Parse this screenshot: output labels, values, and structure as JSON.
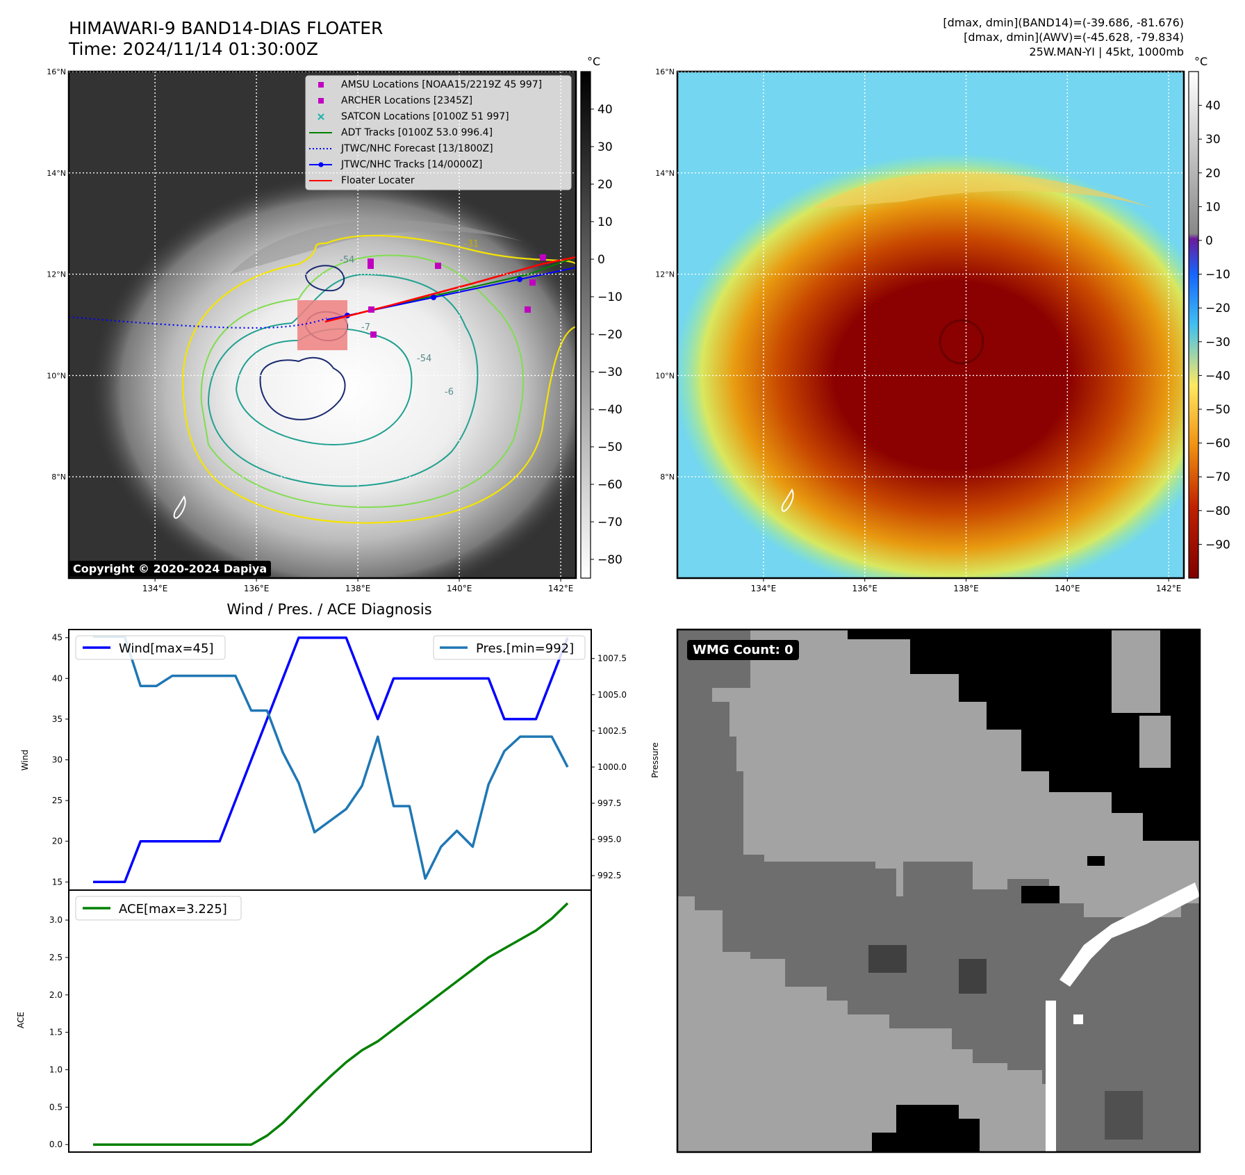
{
  "header": {
    "title": "HIMAWARI-9 BAND14-DIAS FLOATER",
    "time": "Time: 2024/11/14 01:30:00Z",
    "info_band14": "[dmax, dmin](BAND14)=(-39.686, -81.676)",
    "info_awv": "[dmax, dmin](AWV)=(-45.628, -79.834)",
    "info_storm": "25W.MAN-YI | 45kt, 1000mb"
  },
  "map_common": {
    "lon_ticks": [
      "134°E",
      "136°E",
      "138°E",
      "140°E",
      "142°E"
    ],
    "lon_values": [
      134,
      136,
      138,
      140,
      142
    ],
    "lat_ticks": [
      "16°N",
      "14°N",
      "12°N",
      "10°N",
      "8°N"
    ],
    "lat_values": [
      16,
      14,
      12,
      10,
      8
    ],
    "lon_range": [
      132.3,
      142.3
    ],
    "lat_range": [
      6.0,
      16.0
    ]
  },
  "ir_panel": {
    "colorbar_unit": "°C",
    "colorbar_ticks": [
      "40",
      "30",
      "20",
      "10",
      "0",
      "−10",
      "−20",
      "−30",
      "−40",
      "−50",
      "−60",
      "−70",
      "−80"
    ],
    "colorbar_values": [
      40,
      30,
      20,
      10,
      0,
      -10,
      -20,
      -30,
      -40,
      -50,
      -60,
      -70,
      -80
    ],
    "colorbar_range": [
      -85,
      50
    ],
    "copyright": "Copyright © 2020-2024 Dapiya",
    "contour_labels": [
      "-54",
      "-31",
      "-54",
      "-6",
      "-7"
    ],
    "legend": [
      {
        "label": "AMSU Locations [NOAA15/2219Z 45 997]",
        "color": "#c000c0",
        "marker": "square"
      },
      {
        "label": "ARCHER Locations [2345Z]",
        "color": "#c000c0",
        "marker": "square"
      },
      {
        "label": "SATCON Locations [0100Z 51 997]",
        "color": "#20b2aa",
        "marker": "x"
      },
      {
        "label": "ADT Tracks [0100Z 53.0 996.4]",
        "color": "#008000",
        "marker": "line"
      },
      {
        "label": "JTWC/NHC Forecast [13/1800Z]",
        "color": "#0000ff",
        "marker": "dotted"
      },
      {
        "label": "JTWC/NHC Tracks [14/0000Z]",
        "color": "#0000ff",
        "marker": "line-dot"
      },
      {
        "label": "Floater Locater",
        "color": "#ff0000",
        "marker": "line"
      }
    ]
  },
  "awv_panel": {
    "colorbar_unit": "°C",
    "colorbar_ticks": [
      "40",
      "30",
      "20",
      "10",
      "0",
      "−10",
      "−20",
      "−30",
      "−40",
      "−50",
      "−60",
      "−70",
      "−80",
      "−90"
    ],
    "colorbar_values": [
      40,
      30,
      20,
      10,
      0,
      -10,
      -20,
      -30,
      -40,
      -50,
      -60,
      -70,
      -80,
      -90
    ],
    "colorbar_range": [
      -100,
      50
    ]
  },
  "wmg_panel": {
    "label": "WMG Count: 0"
  },
  "chart_data": [
    {
      "type": "line",
      "title": "Wind / Pres. / ACE Diagnosis",
      "ylabel": "Wind",
      "y2label": "Pressure",
      "x": [
        0,
        1,
        2,
        3,
        4,
        5,
        6,
        7,
        8,
        9,
        10,
        11,
        12,
        13,
        14,
        15,
        16,
        17,
        18,
        19,
        20,
        21,
        22,
        23,
        24,
        25,
        26,
        27,
        28,
        29,
        30
      ],
      "ylim": [
        14,
        46
      ],
      "y2lim": [
        991.5,
        1009.5
      ],
      "yticks": [
        15,
        20,
        25,
        30,
        35,
        40,
        45
      ],
      "y2ticks": [
        "992.5",
        "995.0",
        "997.5",
        "1000.0",
        "1002.5",
        "1005.0",
        "1007.5"
      ],
      "y2tick_values": [
        992.5,
        995.0,
        997.5,
        1000.0,
        1002.5,
        1005.0,
        1007.5
      ],
      "series": [
        {
          "name": "Wind[max=45]",
          "axis": "left",
          "color": "#0000ff",
          "values": [
            15,
            15,
            15,
            20,
            20,
            20,
            20,
            20,
            20,
            25,
            30,
            35,
            40,
            45,
            45,
            45,
            45,
            40,
            35,
            40,
            40,
            40,
            40,
            40,
            40,
            40,
            35,
            35,
            35,
            40,
            45
          ]
        },
        {
          "name": "Pres.[min=992]",
          "axis": "right",
          "color": "#1f77b4",
          "values": [
            1009,
            1009,
            1009,
            1005.6,
            1005.6,
            1006.3,
            1006.3,
            1006.3,
            1006.3,
            1006.3,
            1003.9,
            1003.9,
            1001,
            998.9,
            995.5,
            996.3,
            997.1,
            998.7,
            1002.1,
            997.3,
            997.3,
            992.3,
            994.5,
            995.6,
            994.5,
            998.8,
            1001.1,
            1002.1,
            1002.1,
            1002.1,
            1000
          ]
        }
      ]
    },
    {
      "type": "line",
      "title": "",
      "ylabel": "ACE",
      "x": [
        0,
        1,
        2,
        3,
        4,
        5,
        6,
        7,
        8,
        9,
        10,
        11,
        12,
        13,
        14,
        15,
        16,
        17,
        18,
        19,
        20,
        21,
        22,
        23,
        24,
        25,
        26,
        27,
        28,
        29,
        30
      ],
      "ylim": [
        -0.1,
        3.4
      ],
      "yticks": [
        "0.0",
        "0.5",
        "1.0",
        "1.5",
        "2.0",
        "2.5",
        "3.0"
      ],
      "ytick_values": [
        0.0,
        0.5,
        1.0,
        1.5,
        2.0,
        2.5,
        3.0
      ],
      "series": [
        {
          "name": "ACE[max=3.225]",
          "color": "#008000",
          "values": [
            0,
            0,
            0,
            0,
            0,
            0,
            0,
            0,
            0,
            0,
            0,
            0.12,
            0.29,
            0.5,
            0.71,
            0.91,
            1.1,
            1.26,
            1.38,
            1.54,
            1.7,
            1.86,
            2.02,
            2.18,
            2.34,
            2.5,
            2.62,
            2.74,
            2.86,
            3.02,
            3.225
          ]
        }
      ]
    }
  ]
}
